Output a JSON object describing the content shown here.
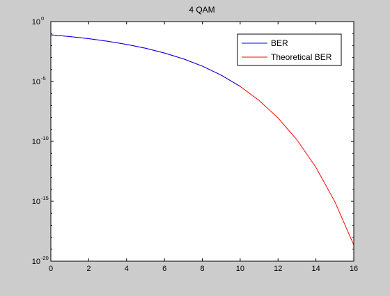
{
  "chart_data": {
    "type": "line",
    "title": "4 QAM",
    "xlabel": "",
    "ylabel": "",
    "xlim": [
      0,
      16
    ],
    "ylim": [
      1e-20,
      1
    ],
    "yscale": "log",
    "xticks": [
      "0",
      "2",
      "4",
      "6",
      "8",
      "10",
      "12",
      "14",
      "16"
    ],
    "yticks": [
      {
        "base": "10",
        "exp": "0",
        "value": 1
      },
      {
        "base": "10",
        "exp": "-5",
        "value": 1e-05
      },
      {
        "base": "10",
        "exp": "-10",
        "value": 1e-10
      },
      {
        "base": "10",
        "exp": "-15",
        "value": 1e-15
      },
      {
        "base": "10",
        "exp": "-20",
        "value": 1e-20
      }
    ],
    "grid": false,
    "legend_position": "top-right",
    "series": [
      {
        "name": "BER",
        "color": "#0000ff",
        "x": [
          0,
          1,
          2,
          3,
          4,
          5,
          6,
          7,
          8,
          9,
          10
        ],
        "y": [
          0.0786,
          0.0563,
          0.0375,
          0.0229,
          0.0125,
          0.00596,
          0.00239,
          0.000773,
          0.000191,
          3.36e-05,
          3.9e-06
        ]
      },
      {
        "name": "Theoretical BER",
        "color": "#ff0000",
        "x": [
          0,
          1,
          2,
          3,
          4,
          5,
          6,
          7,
          8,
          9,
          10,
          11,
          12,
          13,
          14,
          15,
          16
        ],
        "y": [
          0.0786,
          0.0563,
          0.0375,
          0.0229,
          0.0125,
          0.00595,
          0.00239,
          0.000773,
          0.000191,
          3.36e-05,
          3.87e-06,
          2.61e-07,
          9.01e-09,
          1.33e-10,
          6.81e-13,
          9.12e-16,
          2.27e-19
        ]
      }
    ]
  }
}
